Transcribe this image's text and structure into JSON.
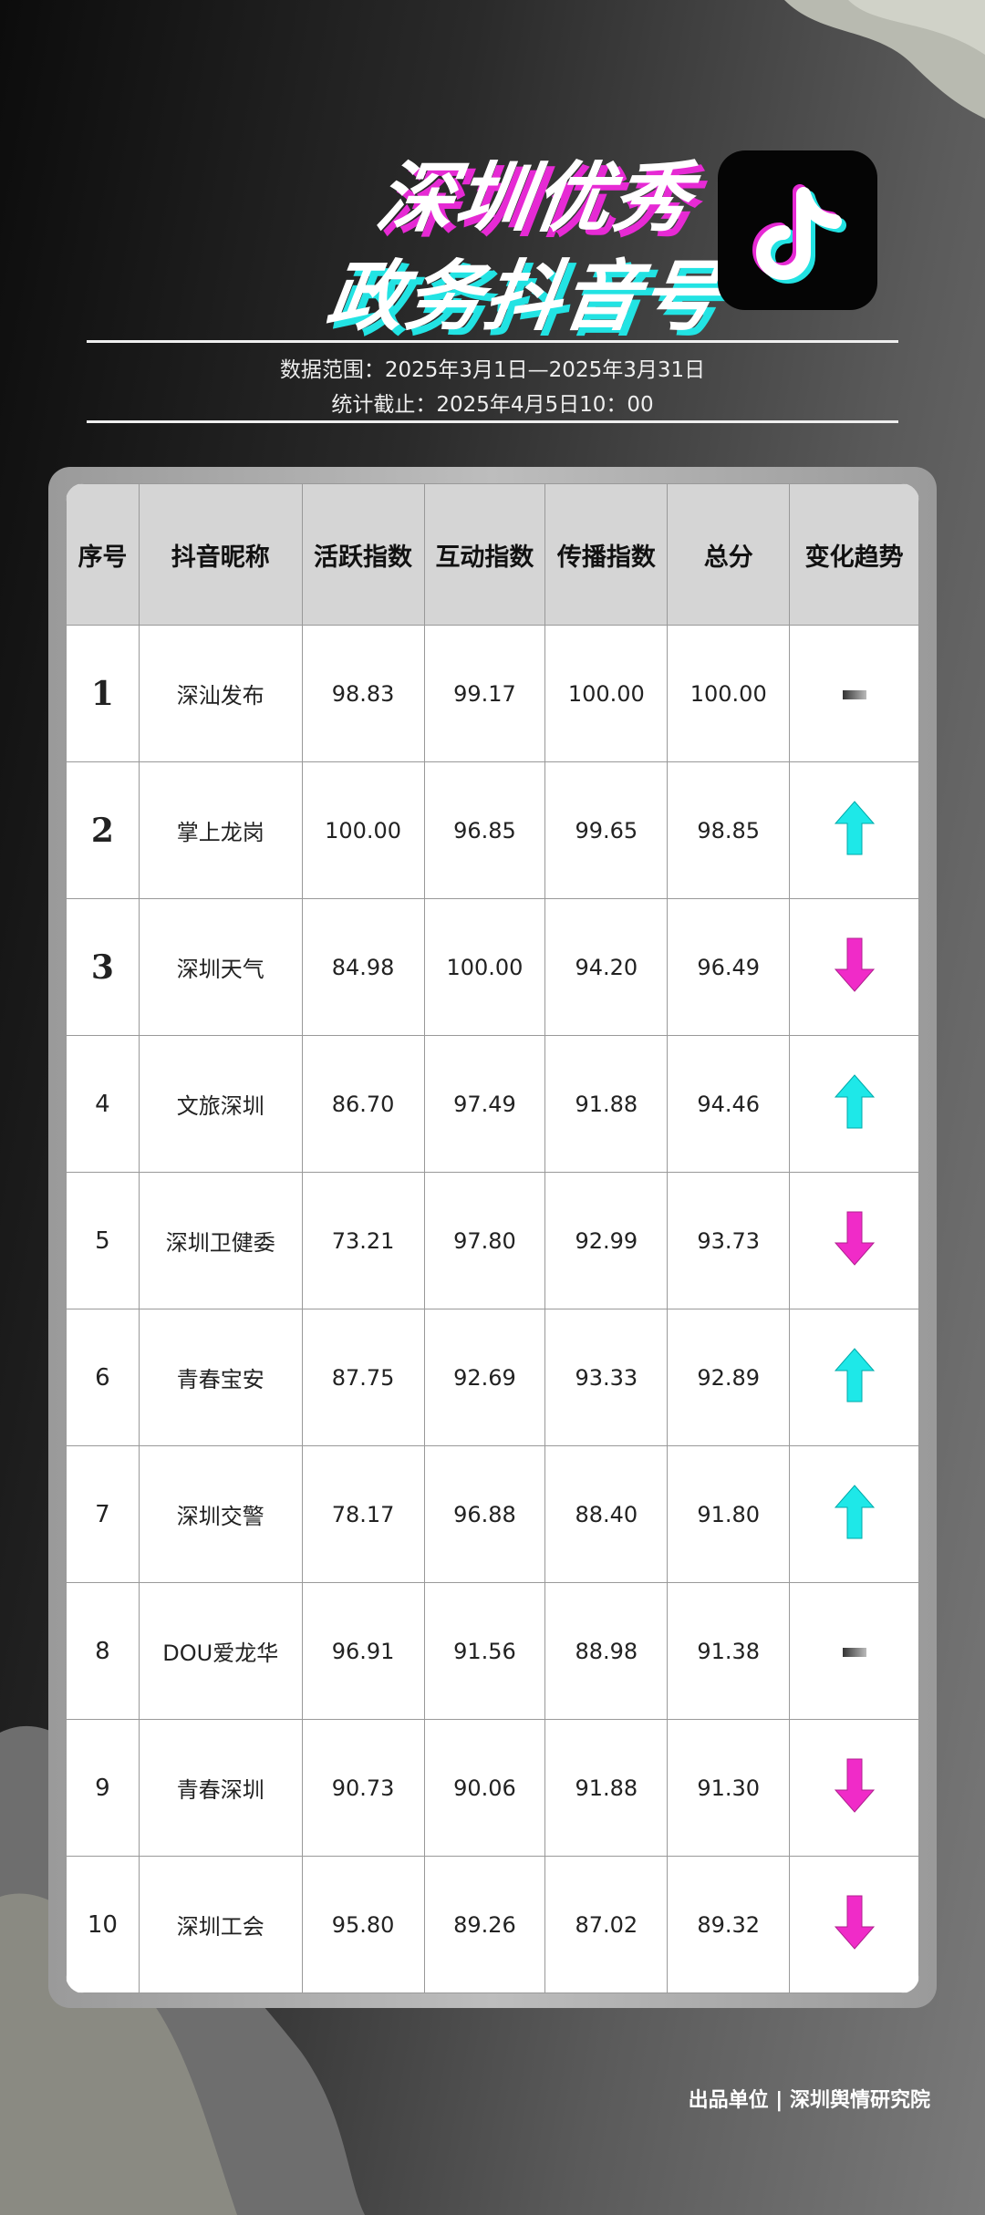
{
  "header": {
    "title_line1": "深圳优秀",
    "title_line2": "政务抖音号",
    "data_range": "数据范围：2025年3月1日—2025年3月31日",
    "cutoff": "统计截止：2025年4月5日10：00",
    "logo_icon": "douyin-note-icon"
  },
  "table": {
    "columns": [
      "序号",
      "抖音昵称",
      "活跃指数",
      "互动指数",
      "传播指数",
      "总分",
      "变化趋势"
    ],
    "rows": [
      {
        "rank": "1",
        "name": "深汕发布",
        "active": "98.83",
        "interact": "99.17",
        "spread": "100.00",
        "total": "100.00",
        "trend": "flat"
      },
      {
        "rank": "2",
        "name": "掌上龙岗",
        "active": "100.00",
        "interact": "96.85",
        "spread": "99.65",
        "total": "98.85",
        "trend": "up"
      },
      {
        "rank": "3",
        "name": "深圳天气",
        "active": "84.98",
        "interact": "100.00",
        "spread": "94.20",
        "total": "96.49",
        "trend": "down"
      },
      {
        "rank": "4",
        "name": "文旅深圳",
        "active": "86.70",
        "interact": "97.49",
        "spread": "91.88",
        "total": "94.46",
        "trend": "up"
      },
      {
        "rank": "5",
        "name": "深圳卫健委",
        "active": "73.21",
        "interact": "97.80",
        "spread": "92.99",
        "total": "93.73",
        "trend": "down"
      },
      {
        "rank": "6",
        "name": "青春宝安",
        "active": "87.75",
        "interact": "92.69",
        "spread": "93.33",
        "total": "92.89",
        "trend": "up"
      },
      {
        "rank": "7",
        "name": "深圳交警",
        "active": "78.17",
        "interact": "96.88",
        "spread": "88.40",
        "total": "91.80",
        "trend": "up"
      },
      {
        "rank": "8",
        "name": "DOU爱龙华",
        "active": "96.91",
        "interact": "91.56",
        "spread": "88.98",
        "total": "91.38",
        "trend": "flat"
      },
      {
        "rank": "9",
        "name": "青春深圳",
        "active": "90.73",
        "interact": "90.06",
        "spread": "91.88",
        "total": "91.30",
        "trend": "down"
      },
      {
        "rank": "10",
        "name": "深圳工会",
        "active": "95.80",
        "interact": "89.26",
        "spread": "87.02",
        "total": "89.32",
        "trend": "down"
      }
    ]
  },
  "colors": {
    "up": "#1ee8e8",
    "down": "#f02bc8",
    "flat": "#777777"
  },
  "footer": "出品单位 | 深圳舆情研究院"
}
